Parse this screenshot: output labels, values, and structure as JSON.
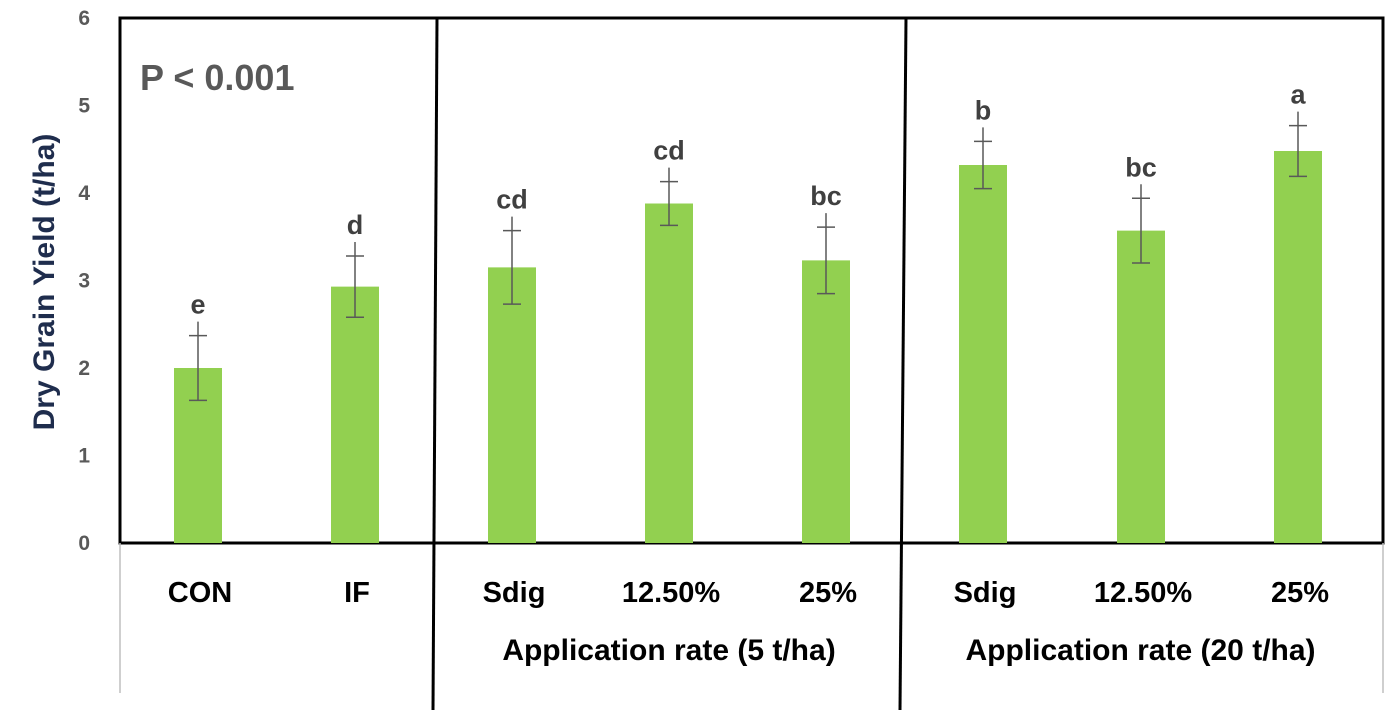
{
  "chart_data": {
    "type": "bar",
    "ylabel": "Dry Grain Yield (t/ha)",
    "ylim": [
      0,
      6
    ],
    "yticks": [
      "0",
      "1",
      "2",
      "3",
      "4",
      "5",
      "6"
    ],
    "annotation": "P < 0.001",
    "categories": [
      "CON",
      "IF",
      "Sdig",
      "12.50%",
      "25%",
      "Sdig",
      "12.50%",
      "25%"
    ],
    "values": [
      2.0,
      2.93,
      3.15,
      3.88,
      3.23,
      4.32,
      3.57,
      4.48
    ],
    "errors": [
      0.37,
      0.35,
      0.42,
      0.25,
      0.38,
      0.27,
      0.37,
      0.29
    ],
    "significance": [
      "e",
      "d",
      "cd",
      "cd",
      "bc",
      "b",
      "bc",
      "a"
    ],
    "groups": [
      {
        "label": "",
        "categories": [
          0,
          1
        ]
      },
      {
        "label": "Application rate (5 t/ha)",
        "categories": [
          2,
          3,
          4
        ]
      },
      {
        "label": "Application rate (20 t/ha)",
        "categories": [
          5,
          6,
          7
        ]
      }
    ],
    "bar_color": "#92d050",
    "error_color": "#595959",
    "grid": false
  }
}
